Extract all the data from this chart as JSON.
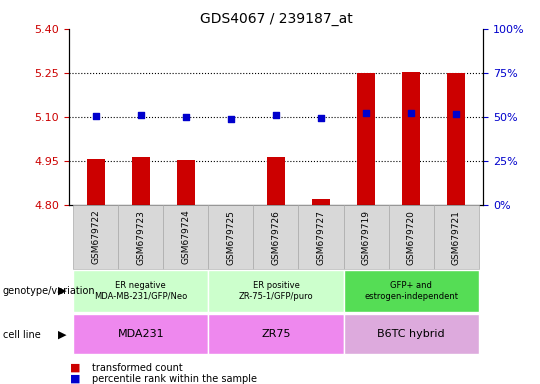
{
  "title": "GDS4067 / 239187_at",
  "samples": [
    "GSM679722",
    "GSM679723",
    "GSM679724",
    "GSM679725",
    "GSM679726",
    "GSM679727",
    "GSM679719",
    "GSM679720",
    "GSM679721"
  ],
  "bar_values": [
    4.958,
    4.965,
    4.955,
    4.802,
    4.964,
    4.822,
    5.25,
    5.252,
    5.25
  ],
  "dot_values": [
    5.105,
    5.108,
    5.102,
    5.095,
    5.107,
    5.098,
    5.115,
    5.115,
    5.112
  ],
  "ylim_left": [
    4.8,
    5.4
  ],
  "ylim_right": [
    0,
    100
  ],
  "yticks_left": [
    4.8,
    4.95,
    5.1,
    5.25,
    5.4
  ],
  "yticks_right": [
    0,
    25,
    50,
    75,
    100
  ],
  "dotted_lines": [
    5.25,
    5.1,
    4.95
  ],
  "bar_color": "#cc0000",
  "dot_color": "#0000cc",
  "groups": [
    {
      "label": "ER negative\nMDA-MB-231/GFP/Neo",
      "start": 0,
      "end": 3,
      "color": "#ccffcc"
    },
    {
      "label": "ER positive\nZR-75-1/GFP/puro",
      "start": 3,
      "end": 6,
      "color": "#ccffcc"
    },
    {
      "label": "GFP+ and\nestrogen-independent",
      "start": 6,
      "end": 9,
      "color": "#55dd55"
    }
  ],
  "cell_lines": [
    {
      "label": "MDA231",
      "start": 0,
      "end": 3,
      "color": "#ee88ee"
    },
    {
      "label": "ZR75",
      "start": 3,
      "end": 6,
      "color": "#ee88ee"
    },
    {
      "label": "B6TC hybrid",
      "start": 6,
      "end": 9,
      "color": "#ddaadd"
    }
  ],
  "row_labels": [
    "genotype/variation",
    "cell line"
  ],
  "legend_items": [
    {
      "color": "#cc0000",
      "label": "transformed count"
    },
    {
      "color": "#0000cc",
      "label": "percentile rank within the sample"
    }
  ],
  "bar_width": 0.4,
  "tick_color_left": "#cc0000",
  "tick_color_right": "#0000cc",
  "sample_box_color": "#d8d8d8",
  "sample_box_edge": "#aaaaaa"
}
